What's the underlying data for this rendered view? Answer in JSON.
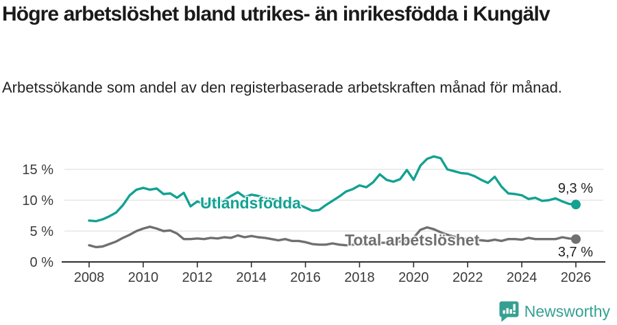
{
  "chart_data": {
    "type": "line",
    "title": "Högre arbetslöshet bland utrikes- än inrikesfödda i Kungälv",
    "subtitle": "Arbetssökande som andel av den registerbaserade arbetskraften månad för månad.",
    "x": [
      2008.0,
      2008.25,
      2008.5,
      2008.75,
      2009.0,
      2009.25,
      2009.5,
      2009.75,
      2010.0,
      2010.25,
      2010.5,
      2010.75,
      2011.0,
      2011.25,
      2011.5,
      2011.75,
      2012.0,
      2012.25,
      2012.5,
      2012.75,
      2013.0,
      2013.25,
      2013.5,
      2013.75,
      2014.0,
      2014.25,
      2014.5,
      2014.75,
      2015.0,
      2015.25,
      2015.5,
      2015.75,
      2016.0,
      2016.25,
      2016.5,
      2016.75,
      2017.0,
      2017.25,
      2017.5,
      2017.75,
      2018.0,
      2018.25,
      2018.5,
      2018.75,
      2019.0,
      2019.25,
      2019.5,
      2019.75,
      2020.0,
      2020.25,
      2020.5,
      2020.75,
      2021.0,
      2021.25,
      2021.5,
      2021.75,
      2022.0,
      2022.25,
      2022.5,
      2022.75,
      2023.0,
      2023.25,
      2023.5,
      2023.75,
      2024.0,
      2024.25,
      2024.5,
      2024.75,
      2025.0,
      2025.25,
      2025.5,
      2025.75,
      2026.0
    ],
    "series": [
      {
        "name": "Utlandsfödda",
        "color": "#12a192",
        "end_label": "9,3 %",
        "end_value": 9.3,
        "values": [
          6.7,
          6.6,
          6.9,
          7.4,
          8.0,
          9.2,
          10.8,
          11.7,
          12.0,
          11.7,
          11.9,
          11.0,
          11.1,
          10.4,
          11.2,
          9.0,
          9.8,
          9.4,
          9.5,
          9.7,
          10.0,
          10.7,
          11.3,
          10.5,
          10.9,
          10.7,
          10.4,
          10.2,
          10.0,
          9.8,
          9.6,
          9.3,
          8.8,
          8.3,
          8.4,
          9.2,
          9.9,
          10.6,
          11.4,
          11.8,
          12.4,
          12.1,
          12.9,
          14.2,
          13.3,
          13.0,
          13.4,
          14.9,
          13.3,
          15.6,
          16.7,
          17.1,
          16.8,
          15.0,
          14.7,
          14.4,
          14.3,
          13.9,
          13.3,
          12.8,
          13.8,
          12.2,
          11.1,
          11.0,
          10.8,
          10.2,
          10.4,
          9.9,
          10.0,
          10.3,
          9.8,
          9.4,
          9.3
        ]
      },
      {
        "name": "Total arbetslöshet",
        "color": "#6f6f6f",
        "end_label": "3,7 %",
        "end_value": 3.7,
        "values": [
          2.7,
          2.4,
          2.5,
          2.9,
          3.3,
          3.9,
          4.4,
          5.0,
          5.4,
          5.7,
          5.4,
          5.0,
          5.1,
          4.6,
          3.7,
          3.7,
          3.8,
          3.7,
          3.9,
          3.8,
          4.0,
          3.9,
          4.3,
          4.0,
          4.2,
          4.0,
          3.9,
          3.7,
          3.5,
          3.7,
          3.4,
          3.4,
          3.2,
          2.9,
          2.8,
          2.8,
          3.0,
          2.8,
          2.7,
          2.8,
          2.9,
          2.9,
          3.0,
          3.1,
          3.1,
          3.2,
          3.3,
          3.5,
          3.9,
          5.2,
          5.6,
          5.3,
          4.8,
          4.4,
          4.1,
          3.9,
          3.7,
          3.6,
          3.5,
          3.4,
          3.6,
          3.4,
          3.7,
          3.7,
          3.6,
          3.9,
          3.7,
          3.7,
          3.7,
          3.7,
          4.0,
          3.8,
          3.7
        ]
      }
    ],
    "x_ticks": [
      2008,
      2010,
      2012,
      2014,
      2016,
      2018,
      2020,
      2022,
      2024,
      2026
    ],
    "y_ticks": [
      0,
      5,
      10,
      15
    ],
    "y_tick_labels": [
      "0 %",
      "5 %",
      "10 %",
      "15 %"
    ],
    "xlim": [
      2007.0,
      2027.1
    ],
    "ylim": [
      0,
      17.5
    ],
    "grid": true,
    "legend_position": "inline-labels",
    "colors": {
      "grid": "#d9d9d9",
      "axis": "#2d2d2d",
      "tick_text": "#3b3b3b"
    }
  },
  "footer": {
    "brand": "Newsworthy",
    "brand_color": "#35a092",
    "logo_icon": "bar-chart-speech-bubble-icon"
  }
}
